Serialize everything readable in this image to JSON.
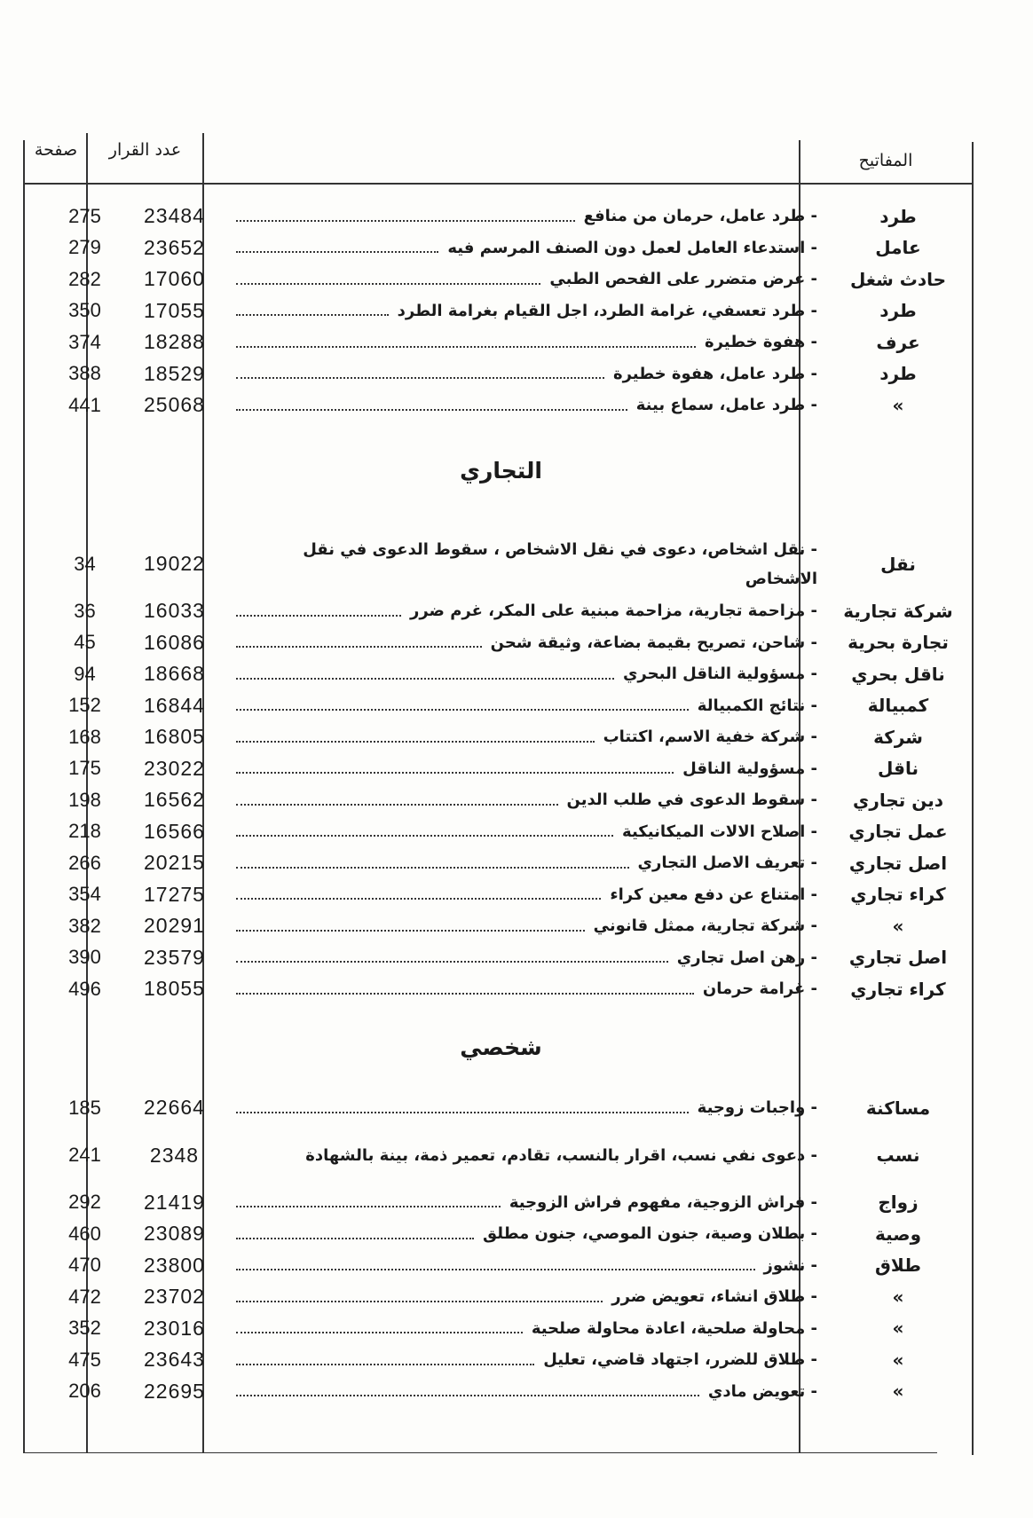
{
  "header": {
    "keywords": "المفاتيح",
    "decision_number": "عدد القرار",
    "page": "صفحة"
  },
  "sections": [
    {
      "title": "",
      "rows": [
        {
          "keyword": "طرد",
          "text": "- طرد عامل، حرمان من منافع",
          "decision": "23484",
          "page": "275"
        },
        {
          "keyword": "عامل",
          "text": "- استدعاء العامل لعمل دون الصنف المرسم فيه",
          "decision": "23652",
          "page": "279"
        },
        {
          "keyword": "حادث شغل",
          "text": "- عرض متضرر على الفحص الطبي",
          "decision": "17060",
          "page": "282"
        },
        {
          "keyword": "طرد",
          "text": "- طرد تعسفي، غرامة الطرد، اجل القيام بغرامة الطرد",
          "decision": "17055",
          "page": "350"
        },
        {
          "keyword": "عرف",
          "text": "- هفوة خطيرة",
          "decision": "18288",
          "page": "374"
        },
        {
          "keyword": "طرد",
          "text": "- طرد عامل، هفوة خطيرة",
          "decision": "18529",
          "page": "388"
        },
        {
          "keyword": "»",
          "text": "- طرد عامل، سماع بينة",
          "decision": "25068",
          "page": "441"
        }
      ]
    },
    {
      "title": "التجاري",
      "rows": [
        {
          "keyword": "نقل",
          "text": "- نقل اشخاص، دعوى في نقل الاشخاص ، سقوط الدعوى في نقل الاشخاص",
          "decision": "19022",
          "page": "34",
          "tall": true
        },
        {
          "keyword": "شركة تجارية",
          "text": "- مزاحمة تجارية، مزاحمة مبنية على المكر، غرم ضرر",
          "decision": "16033",
          "page": "36"
        },
        {
          "keyword": "تجارة بحرية",
          "text": "- شاحن، تصريح بقيمة بضاعة، وثيقة شحن",
          "decision": "16086",
          "page": "45"
        },
        {
          "keyword": "ناقل بحري",
          "text": "- مسؤولية الناقل البحري",
          "decision": "18668",
          "page": "94"
        },
        {
          "keyword": "كمبيالة",
          "text": "- نتائج الكمبيالة",
          "decision": "16844",
          "page": "152"
        },
        {
          "keyword": "شركة",
          "text": "- شركة خفية الاسم، اكتتاب",
          "decision": "16805",
          "page": "168"
        },
        {
          "keyword": "ناقل",
          "text": "- مسؤولية الناقل",
          "decision": "23022",
          "page": "175"
        },
        {
          "keyword": "دين تجاري",
          "text": "- سقوط الدعوى في طلب الدين",
          "decision": "16562",
          "page": "198"
        },
        {
          "keyword": "عمل تجاري",
          "text": "- اصلاح الالات الميكانيكية",
          "decision": "16566",
          "page": "218"
        },
        {
          "keyword": "اصل تجاري",
          "text": "- تعريف الاصل التجاري",
          "decision": "20215",
          "page": "266"
        },
        {
          "keyword": "كراء تجاري",
          "text": "- امتناع عن دفع معين كراء",
          "decision": "17275",
          "page": "354"
        },
        {
          "keyword": "»",
          "text": "- شركة تجارية، ممثل قانوني",
          "decision": "20291",
          "page": "382"
        },
        {
          "keyword": "اصل تجاري",
          "text": "- رهن اصل تجاري",
          "decision": "23579",
          "page": "390"
        },
        {
          "keyword": "كراء تجاري",
          "text": "- غرامة حرمان",
          "decision": "18055",
          "page": "496"
        }
      ]
    },
    {
      "title": "شخصي",
      "rows": [
        {
          "keyword": "مساكنة",
          "text": "- واجبات زوجية",
          "decision": "22664",
          "page": "185"
        },
        {
          "keyword": "نسب",
          "text": "- دعوى نفي نسب، اقرار بالنسب، تقادم، تعمير ذمة، بينة بالشهادة",
          "decision": "2348",
          "page": "241",
          "tall": true
        },
        {
          "keyword": "زواج",
          "text": "- فراش الزوجية، مفهوم فراش الزوجية",
          "decision": "21419",
          "page": "292"
        },
        {
          "keyword": "وصية",
          "text": "- بطلان وصية، جنون الموصي، جنون مطلق",
          "decision": "23089",
          "page": "460"
        },
        {
          "keyword": "طلاق",
          "text": "- نشوز",
          "decision": "23800",
          "page": "470"
        },
        {
          "keyword": "»",
          "text": "- طلاق انشاء، تعويض ضرر",
          "decision": "23702",
          "page": "472"
        },
        {
          "keyword": "»",
          "text": "- محاولة صلحية، اعادة محاولة صلحية",
          "decision": "23016",
          "page": "352"
        },
        {
          "keyword": "»",
          "text": "- طلاق للضرر، اجتهاد قاضي، تعليل",
          "decision": "23643",
          "page": "475"
        },
        {
          "keyword": "»",
          "text": "- تعويض مادي",
          "decision": "22695",
          "page": "206"
        }
      ]
    }
  ]
}
